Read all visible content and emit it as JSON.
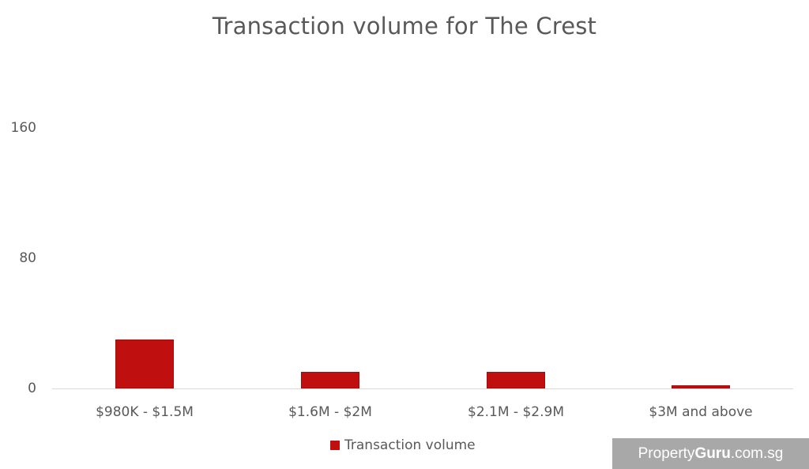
{
  "chart": {
    "title": "Transaction volume for The Crest",
    "y_ticks": [
      "160",
      "80",
      "0"
    ],
    "x_labels": [
      "$980K - $1.5M",
      "$1.6M - $2M",
      "$2.1M - $2.9M",
      "$3M and above"
    ],
    "legend_label": "Transaction volume",
    "bar_color": "#c00f0f"
  },
  "watermark": {
    "prefix": "Property",
    "bold": "Guru",
    "suffix": ".com.sg"
  },
  "chart_data": {
    "type": "bar",
    "title": "Transaction volume for The Crest",
    "categories": [
      "$980K - $1.5M",
      "$1.6M - $2M",
      "$2.1M - $2.9M",
      "$3M and above"
    ],
    "series": [
      {
        "name": "Transaction volume",
        "values": [
          30,
          10,
          10,
          2
        ]
      }
    ],
    "xlabel": "",
    "ylabel": "",
    "ylim": [
      0,
      160
    ],
    "yticks": [
      0,
      80,
      160
    ],
    "grid": false,
    "legend_position": "bottom"
  }
}
